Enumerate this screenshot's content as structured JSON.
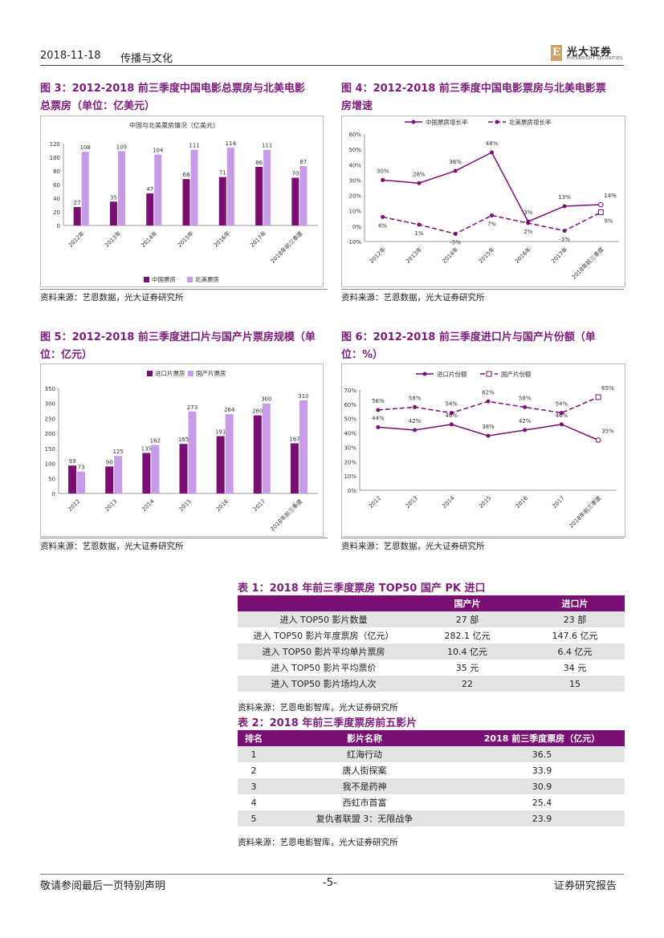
{
  "header": {
    "date": "2018-11-18",
    "section": "传播与文化",
    "logo_mark": "E",
    "logo_name": "光大证券",
    "logo_sub": "EVERBRIGHT SECURITIES"
  },
  "fig3": {
    "title_line1": "图 3：2012-2018 前三季度中国电影总票房与北美电影",
    "title_line2": "总票房（单位：亿美元）",
    "source": "资料来源：艺恩数据，光大证券研究所"
  },
  "fig4": {
    "title_line1": "图 4：2012-2018 前三季度中国电影票房与北美电影票",
    "title_line2": "房增速",
    "source": "资料来源：艺恩数据，光大证券研究所"
  },
  "fig5": {
    "title_line1": "图 5：2012-2018 前三季度进口片与国产片票房规模（单",
    "title_line2": "位：亿元）",
    "source": "资料来源：艺恩数据，光大证券研究所"
  },
  "fig6": {
    "title_line1": "图 6：2012-2018 前三季度进口片与国产片份额（单",
    "title_line2": "位：%）",
    "source": "资料来源：艺恩数据，光大证券研究所"
  },
  "chart_data": [
    {
      "id": "fig3",
      "type": "bar",
      "title": "中国与北美票房情况（亿美元）",
      "categories": [
        "2012年",
        "2013年",
        "2014年",
        "2015年",
        "2016年",
        "2017年",
        "2018年前三季度"
      ],
      "series": [
        {
          "name": "中国票房",
          "values": [
            27,
            35,
            47,
            68,
            71,
            86,
            70
          ]
        },
        {
          "name": "北美票房",
          "values": [
            108,
            109,
            104,
            111,
            114,
            111,
            87
          ]
        }
      ],
      "yticks": [
        "0",
        "20",
        "40",
        "60",
        "80",
        "100",
        "120"
      ],
      "ylim": [
        0,
        120
      ]
    },
    {
      "id": "fig4",
      "type": "line",
      "categories": [
        "2012年",
        "2013年",
        "2014年",
        "2015年",
        "2016年",
        "2017年",
        "2018年前三季度"
      ],
      "series": [
        {
          "name": "中国票房增长率",
          "values": [
            30,
            28,
            36,
            48,
            3,
            13,
            14
          ],
          "labels": [
            "30%",
            "28%",
            "36%",
            "48%",
            "3%",
            "13%",
            "14%"
          ]
        },
        {
          "name": "北美票房增长率",
          "values": [
            6,
            1,
            -5,
            7,
            2,
            -3,
            9
          ],
          "labels": [
            "6%",
            "1%",
            "-5%",
            "7%",
            "2%",
            "-3%",
            "9%"
          ]
        }
      ],
      "yticks": [
        "-10%",
        "0%",
        "10%",
        "20%",
        "30%",
        "40%",
        "50%",
        "60%"
      ],
      "ylim": [
        -10,
        60
      ]
    },
    {
      "id": "fig5",
      "type": "bar",
      "categories": [
        "2012",
        "2013",
        "2014",
        "2015",
        "2016",
        "2017",
        "2018年前三季度"
      ],
      "series": [
        {
          "name": "进口片票房",
          "values": [
            93,
            90,
            135,
            165,
            191,
            260,
            167
          ]
        },
        {
          "name": "国产片票房",
          "values": [
            73,
            125,
            162,
            273,
            264,
            300,
            310
          ]
        }
      ],
      "labels": [
        [
          "93",
          "90",
          "135",
          "165",
          "191",
          "260",
          "167"
        ],
        [
          "73",
          "125",
          "162",
          "273",
          "264",
          "300",
          "310"
        ]
      ],
      "yticks": [
        "0",
        "50",
        "100",
        "150",
        "200",
        "250",
        "300",
        "350"
      ],
      "ylim": [
        0,
        350
      ]
    },
    {
      "id": "fig6",
      "type": "line",
      "categories": [
        "2012",
        "2013",
        "2014",
        "2015",
        "2016",
        "2017",
        "2018年前三季度"
      ],
      "series": [
        {
          "name": "进口片份额",
          "values": [
            44,
            42,
            46,
            38,
            42,
            46,
            35
          ],
          "labels": [
            "44%",
            "42%",
            "46%",
            "38%",
            "42%",
            "46%",
            "35%"
          ]
        },
        {
          "name": "国产片份额",
          "values": [
            56,
            58,
            54,
            62,
            58,
            54,
            65
          ],
          "labels": [
            "56%",
            "58%",
            "54%",
            "62%",
            "58%",
            "54%",
            "65%"
          ]
        }
      ],
      "yticks": [
        "0%",
        "10%",
        "20%",
        "30%",
        "40%",
        "50%",
        "60%",
        "70%"
      ],
      "ylim": [
        0,
        70
      ]
    }
  ],
  "colors": {
    "purple_dark": "#7a0f73",
    "purple_light": "#c79be8",
    "title_purple": "#7b1c7b"
  },
  "table1": {
    "title": "表 1：2018 年前三季度票房 TOP50  国产 PK 进口",
    "headers": [
      "",
      "国产片",
      "进口片"
    ],
    "rows": [
      [
        "进入 TOP50 影片数量",
        "27 部",
        "23 部"
      ],
      [
        "进入 TOP50 影片年度票房（亿元）",
        "282.1 亿元",
        "147.6 亿元"
      ],
      [
        "进入 TOP50 影片平均单片票房",
        "10.4 亿元",
        "6.4 亿元"
      ],
      [
        "进入 TOP50 影片平均票价",
        "35 元",
        "34 元"
      ],
      [
        "进入 TOP50 影片场均人次",
        "22",
        "15"
      ]
    ],
    "source": "资料来源：艺恩电影智库，光大证券研究所"
  },
  "table2": {
    "title": "表 2：2018 年前三季度票房前五影片",
    "headers": [
      "排名",
      "影片名称",
      "2018 前三季度票房（亿元）"
    ],
    "rows": [
      [
        "1",
        "红海行动",
        "36.5"
      ],
      [
        "2",
        "唐人街探案",
        "33.9"
      ],
      [
        "3",
        "我不是药神",
        "30.9"
      ],
      [
        "4",
        "西虹市首富",
        "25.4"
      ],
      [
        "5",
        "复仇者联盟 3：无限战争",
        "23.9"
      ]
    ],
    "source": "资料来源：艺恩电影智库，光大证券研究所"
  },
  "footer": {
    "left": "敬请参阅最后一页特别声明",
    "page": "-5-",
    "right": "证券研究报告"
  }
}
